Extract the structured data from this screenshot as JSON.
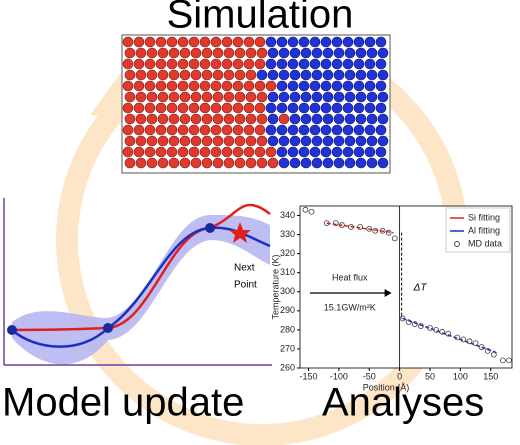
{
  "titles": {
    "simulation": "Simulation",
    "model_update": "Model update",
    "analyses": "Analyses"
  },
  "model_update": {
    "annotation_line1": "Next",
    "annotation_line2": "Point"
  },
  "analyses": {
    "type": "scatter",
    "xlabel": "Position (Å)",
    "ylabel": "Temperature (K)",
    "xlim": [
      -164,
      185
    ],
    "ylim": [
      260,
      345
    ],
    "xticks": [
      -150,
      -100,
      -50,
      0,
      50,
      100,
      150
    ],
    "yticks": [
      260,
      270,
      280,
      290,
      300,
      310,
      320,
      330,
      340
    ],
    "series": [
      {
        "name": "Si fitting",
        "color": "#e0201b",
        "style": "line",
        "x": [
          -120,
          -10
        ],
        "values": [
          336,
          331
        ]
      },
      {
        "name": "Al fitting",
        "color": "#1c2fc4",
        "style": "line",
        "x": [
          5,
          160
        ],
        "values": [
          286,
          268
        ]
      },
      {
        "name": "MD data",
        "color": "#444444",
        "style": "marker",
        "x": [
          -155,
          -145,
          -120,
          -105,
          -95,
          -80,
          -65,
          -50,
          -40,
          -28,
          -18,
          -8,
          5,
          15,
          25,
          35,
          50,
          60,
          70,
          80,
          95,
          105,
          115,
          125,
          135,
          145,
          155,
          170,
          180
        ],
        "values": [
          343,
          342,
          336,
          336,
          335,
          334,
          334,
          333,
          332,
          332,
          331,
          328,
          286,
          284,
          283,
          282,
          281,
          280,
          279,
          278,
          276,
          275,
          274,
          273,
          271,
          269,
          267,
          264,
          264
        ]
      }
    ],
    "legend": "upper right",
    "annotations": {
      "flux": "Heat flux",
      "conductance": "15.1GW/m²K",
      "delta": "ΔT"
    }
  }
}
